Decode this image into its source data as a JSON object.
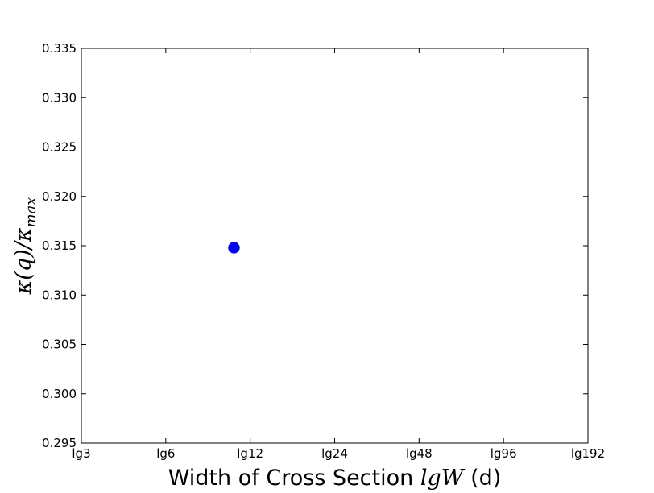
{
  "chart_data": {
    "type": "scatter",
    "title": "",
    "xlabel": {
      "prefix": "Width of Cross Section ",
      "math": "lgW",
      "suffix": " (d)"
    },
    "ylabel": {
      "kappa_q": "κ(q)",
      "slash": "/",
      "kappa": "κ",
      "subscript": "max"
    },
    "x_ticks": [
      "lg3",
      "lg6",
      "lg12",
      "lg24",
      "lg48",
      "lg96",
      "lg192"
    ],
    "x_tick_values": [
      3,
      6,
      12,
      24,
      48,
      96,
      192
    ],
    "x_scale": "log2",
    "xlim": [
      3,
      192
    ],
    "ylim": [
      0.295,
      0.335
    ],
    "y_ticks": [
      "0.295",
      "0.300",
      "0.305",
      "0.310",
      "0.315",
      "0.320",
      "0.325",
      "0.330",
      "0.335"
    ],
    "y_tick_values": [
      0.295,
      0.3,
      0.305,
      0.31,
      0.315,
      0.32,
      0.325,
      0.33,
      0.335
    ],
    "grid": false,
    "series": [
      {
        "color": "#0000ff",
        "marker": "circle",
        "points": [
          {
            "x": 10.5,
            "y": 0.3148
          }
        ]
      }
    ]
  }
}
